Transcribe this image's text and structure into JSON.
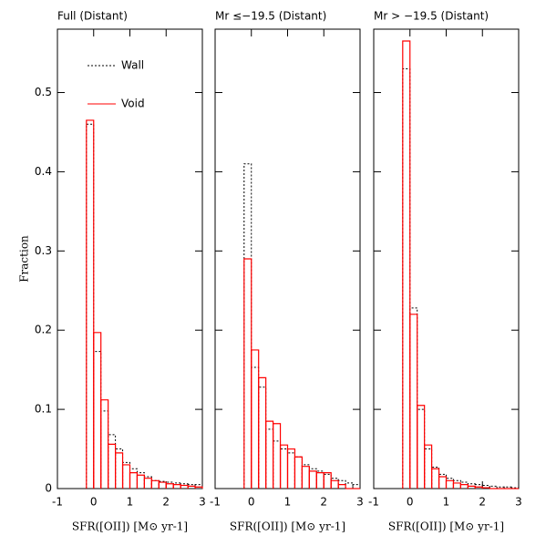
{
  "chart_data": [
    {
      "type": "histogram",
      "title": "Full (Distant)",
      "xlabel": "SFR([OII]) [M⊙ yr-1]",
      "ylabel": "Fraction",
      "bins": [
        -0.2,
        0,
        0.2,
        0.4,
        0.6,
        0.8,
        1.0,
        1.2,
        1.4,
        1.6,
        1.8,
        2.0,
        2.2,
        2.4,
        2.6,
        2.8,
        3.0
      ],
      "series": [
        {
          "name": "Wall",
          "color": "#000000",
          "dash": true,
          "values": [
            0.46,
            0.173,
            0.098,
            0.068,
            0.05,
            0.033,
            0.025,
            0.02,
            0.015,
            0.01,
            0.009,
            0.008,
            0.007,
            0.006,
            0.005,
            0.005
          ]
        },
        {
          "name": "Void",
          "color": "#ff0000",
          "dash": false,
          "values": [
            0.465,
            0.197,
            0.112,
            0.056,
            0.045,
            0.03,
            0.02,
            0.017,
            0.013,
            0.01,
            0.008,
            0.006,
            0.005,
            0.004,
            0.003,
            0.002
          ]
        }
      ],
      "xlim": [
        -1,
        3
      ],
      "xticks": [
        -1,
        0,
        1,
        2,
        3
      ],
      "ylim": [
        0,
        0.58
      ],
      "yticks": [
        0,
        0.1,
        0.2,
        0.3,
        0.4,
        0.5
      ],
      "show_yticklabels": true,
      "legend": true
    },
    {
      "type": "histogram",
      "title": "Mr ≤−19.5 (Distant)",
      "xlabel": "SFR([OII]) [M⊙ yr-1]",
      "bins": [
        -0.2,
        0,
        0.2,
        0.4,
        0.6,
        0.8,
        1.0,
        1.2,
        1.4,
        1.6,
        1.8,
        2.0,
        2.2,
        2.4,
        2.6,
        2.8,
        3.0
      ],
      "series": [
        {
          "color": "#000000",
          "dash": true,
          "values": [
            0.41,
            0.153,
            0.128,
            0.075,
            0.06,
            0.05,
            0.045,
            0.04,
            0.03,
            0.025,
            0.022,
            0.018,
            0.013,
            0.01,
            0.007,
            0.005
          ]
        },
        {
          "color": "#ff0000",
          "dash": false,
          "values": [
            0.29,
            0.175,
            0.14,
            0.085,
            0.082,
            0.055,
            0.05,
            0.04,
            0.028,
            0.022,
            0.02,
            0.02,
            0.01,
            0.005,
            0,
            0
          ]
        }
      ],
      "xlim": [
        -1,
        3
      ],
      "xticks": [
        -1,
        0,
        1,
        2,
        3
      ],
      "ylim": [
        0,
        0.58
      ],
      "yticks": [
        0,
        0.1,
        0.2,
        0.3,
        0.4,
        0.5
      ],
      "show_yticklabels": false,
      "legend": false
    },
    {
      "type": "histogram",
      "title": "Mr > −19.5 (Distant)",
      "xlabel": "SFR([OII]) [M⊙ yr-1]",
      "bins": [
        -0.2,
        0,
        0.2,
        0.4,
        0.6,
        0.8,
        1.0,
        1.2,
        1.4,
        1.6,
        1.8,
        2.0,
        2.2,
        2.4,
        2.6,
        2.8,
        3.0
      ],
      "series": [
        {
          "color": "#000000",
          "dash": true,
          "values": [
            0.53,
            0.228,
            0.1,
            0.05,
            0.027,
            0.018,
            0.013,
            0.01,
            0.008,
            0.006,
            0.005,
            0.004,
            0.003,
            0.002,
            0.002,
            0.001
          ]
        },
        {
          "color": "#ff0000",
          "dash": false,
          "values": [
            0.565,
            0.22,
            0.105,
            0.055,
            0.025,
            0.015,
            0.01,
            0.007,
            0.005,
            0.003,
            0.002,
            0.001,
            0,
            0,
            0,
            0
          ]
        }
      ],
      "xlim": [
        -1,
        3
      ],
      "xticks": [
        -1,
        0,
        1,
        2,
        3
      ],
      "ylim": [
        0,
        0.58
      ],
      "yticks": [
        0,
        0.1,
        0.2,
        0.3,
        0.4,
        0.5
      ],
      "show_yticklabels": false,
      "legend": false
    }
  ]
}
